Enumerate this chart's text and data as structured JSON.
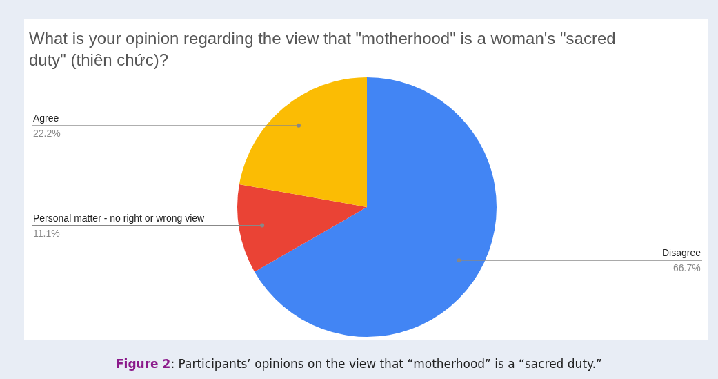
{
  "chart_data": {
    "type": "pie",
    "title": "What is your opinion regarding the view that \"motherhood\" is a woman's \"sacred duty\" (thiên chức)?",
    "categories": [
      "Disagree",
      "Personal matter - no right or wrong view",
      "Agree"
    ],
    "values": [
      66.7,
      11.1,
      22.2
    ],
    "value_labels": [
      "66.7%",
      "11.1%",
      "22.2%"
    ],
    "colors": [
      "#4285f4",
      "#ea4335",
      "#fbbc04"
    ],
    "legend": false,
    "annotations": [
      "Figure 2: Participants’ opinions on the view that “motherhood” is a “sacred duty.”"
    ]
  }
}
